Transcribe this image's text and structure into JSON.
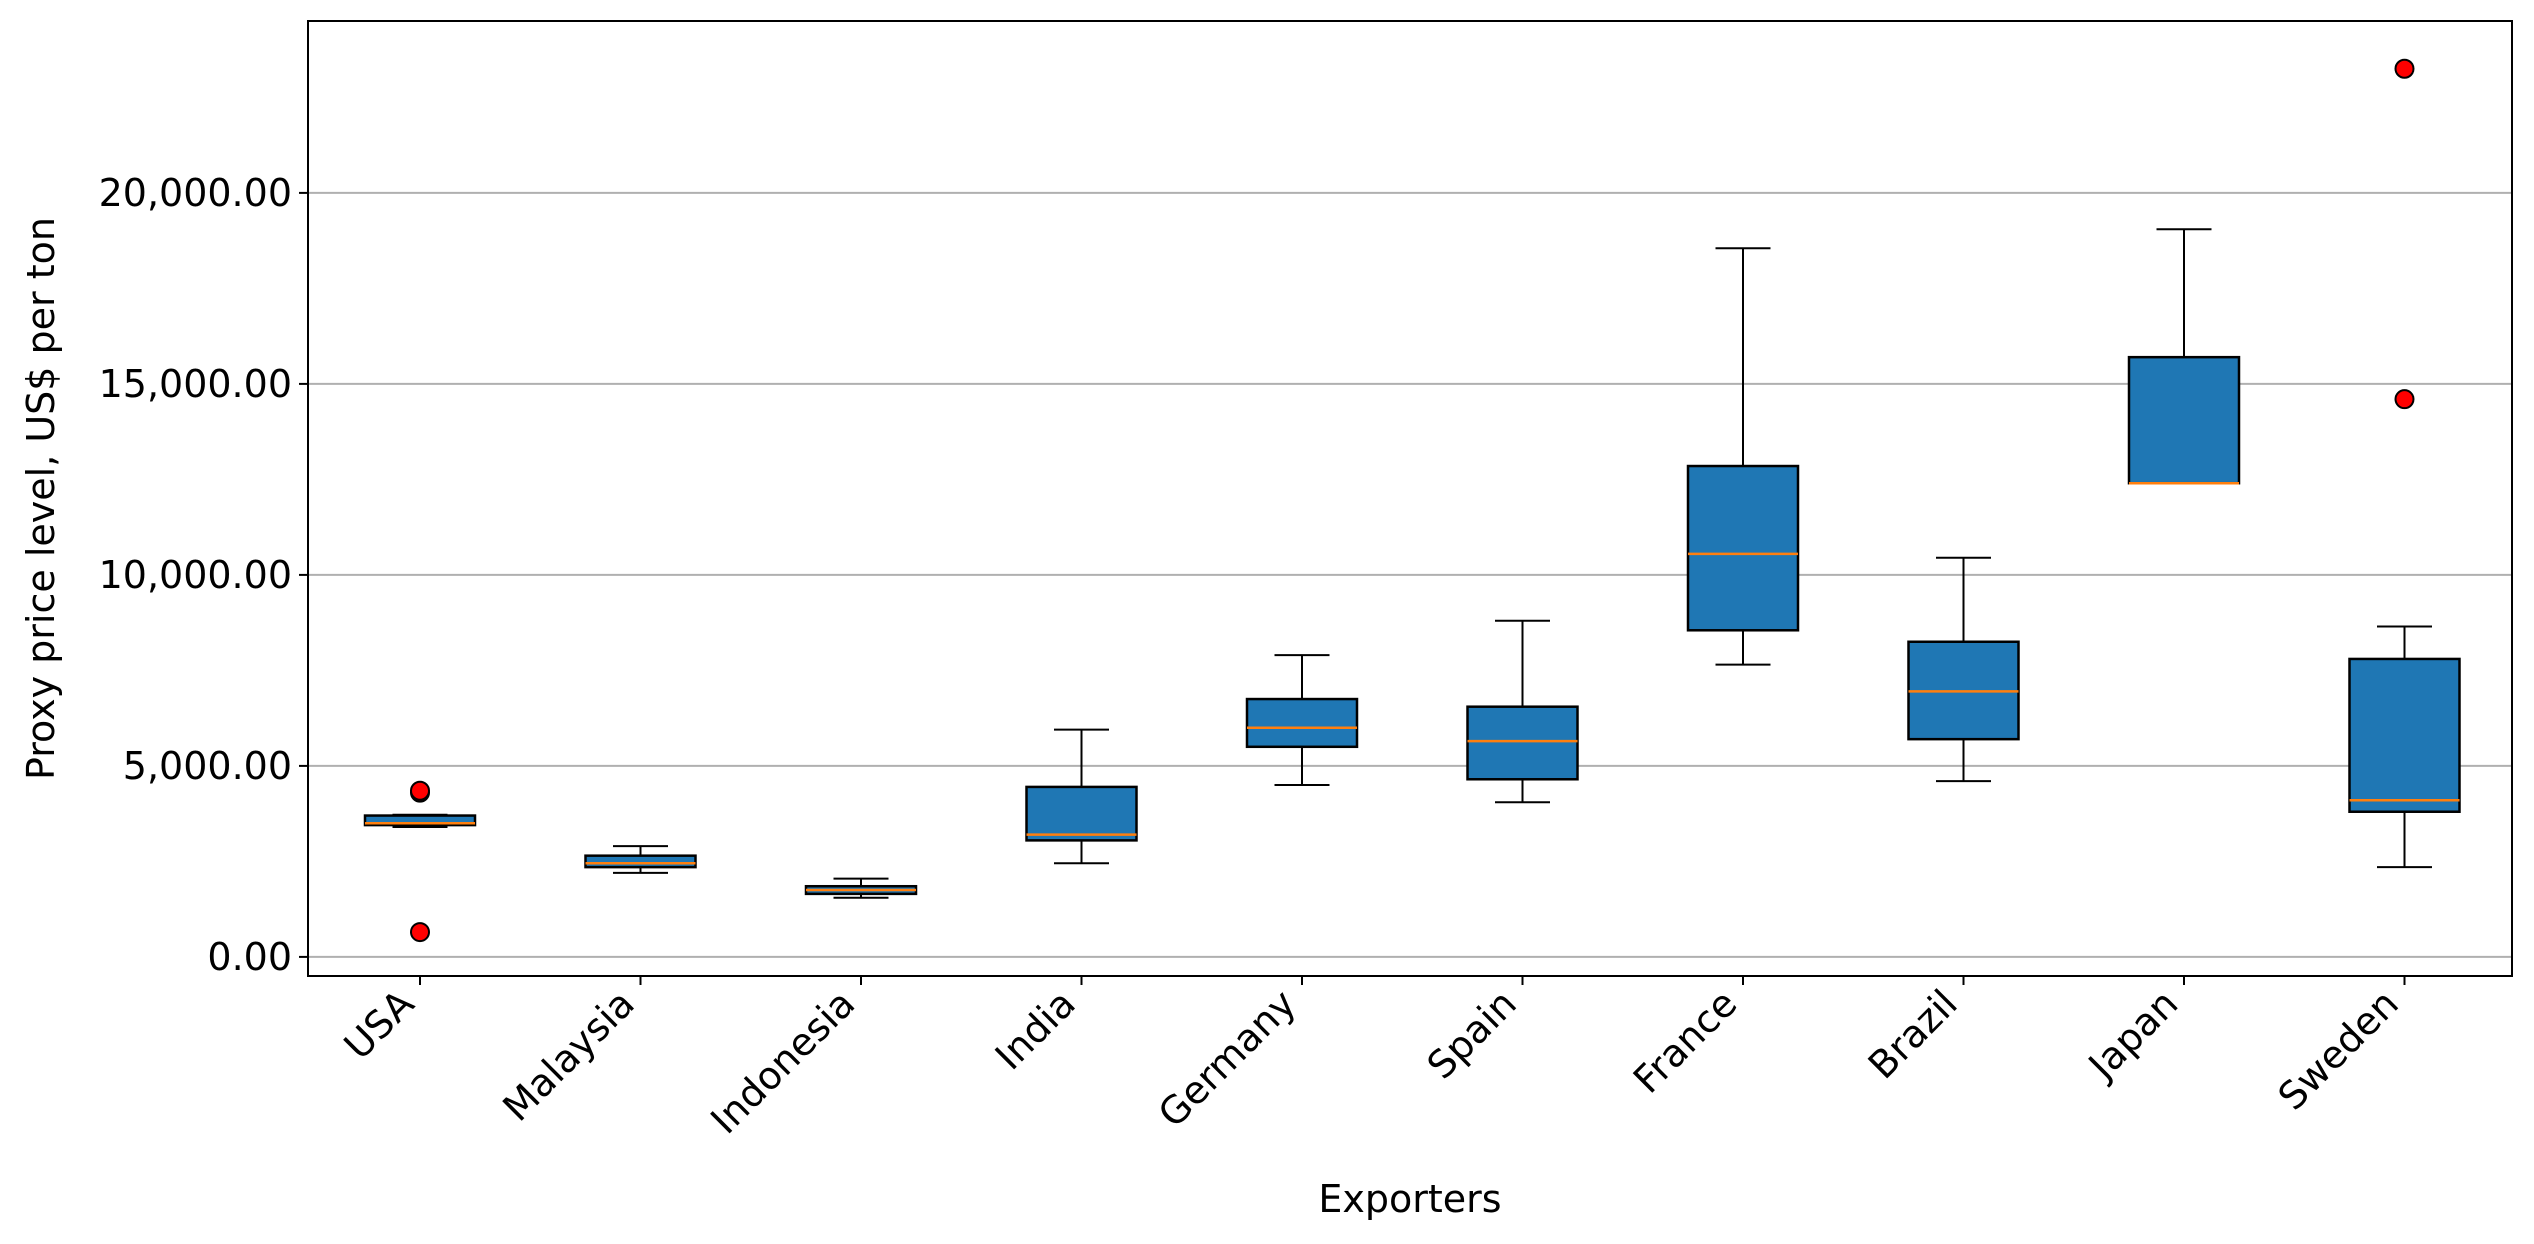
{
  "chart_data": {
    "type": "box",
    "title": "",
    "xlabel": "Exporters",
    "ylabel": "Proxy price level, US$ per ton",
    "ylim": [
      -500,
      24500
    ],
    "yticks": [
      0,
      5000,
      10000,
      15000,
      20000
    ],
    "ytick_labels": [
      "0.00",
      "5,000.00",
      "10,000.00",
      "15,000.00",
      "20,000.00"
    ],
    "grid": "horizontal",
    "box_color": "#1f77b4",
    "median_color": "#ff7f0e",
    "outlier_color": "#ff0000",
    "categories": [
      "USA",
      "Malaysia",
      "Indonesia",
      "India",
      "Germany",
      "Spain",
      "France",
      "Brazil",
      "Japan",
      "Sweden"
    ],
    "boxes": [
      {
        "label": "USA",
        "whisker_low": 3400,
        "q1": 3450,
        "median": 3500,
        "q3": 3700,
        "whisker_high": 3720,
        "outliers": [
          4300,
          4350,
          650
        ]
      },
      {
        "label": "Malaysia",
        "whisker_low": 2200,
        "q1": 2350,
        "median": 2450,
        "q3": 2650,
        "whisker_high": 2900,
        "outliers": []
      },
      {
        "label": "Indonesia",
        "whisker_low": 1550,
        "q1": 1650,
        "median": 1750,
        "q3": 1850,
        "whisker_high": 2050,
        "outliers": []
      },
      {
        "label": "India",
        "whisker_low": 2450,
        "q1": 3050,
        "median": 3200,
        "q3": 4450,
        "whisker_high": 5950,
        "outliers": []
      },
      {
        "label": "Germany",
        "whisker_low": 4500,
        "q1": 5500,
        "median": 6000,
        "q3": 6750,
        "whisker_high": 7900,
        "outliers": []
      },
      {
        "label": "Spain",
        "whisker_low": 4050,
        "q1": 4650,
        "median": 5650,
        "q3": 6550,
        "whisker_high": 8800,
        "outliers": []
      },
      {
        "label": "France",
        "whisker_low": 7650,
        "q1": 8550,
        "median": 10550,
        "q3": 12850,
        "whisker_high": 18550,
        "outliers": []
      },
      {
        "label": "Brazil",
        "whisker_low": 4600,
        "q1": 5700,
        "median": 6950,
        "q3": 8250,
        "whisker_high": 10450,
        "outliers": []
      },
      {
        "label": "Japan",
        "whisker_low": 12400,
        "q1": 12400,
        "median": 12400,
        "q3": 15700,
        "whisker_high": 19050,
        "outliers": []
      },
      {
        "label": "Sweden",
        "whisker_low": 2350,
        "q1": 3800,
        "median": 4100,
        "q3": 7800,
        "whisker_high": 8650,
        "outliers": [
          23250,
          14600
        ]
      }
    ]
  }
}
